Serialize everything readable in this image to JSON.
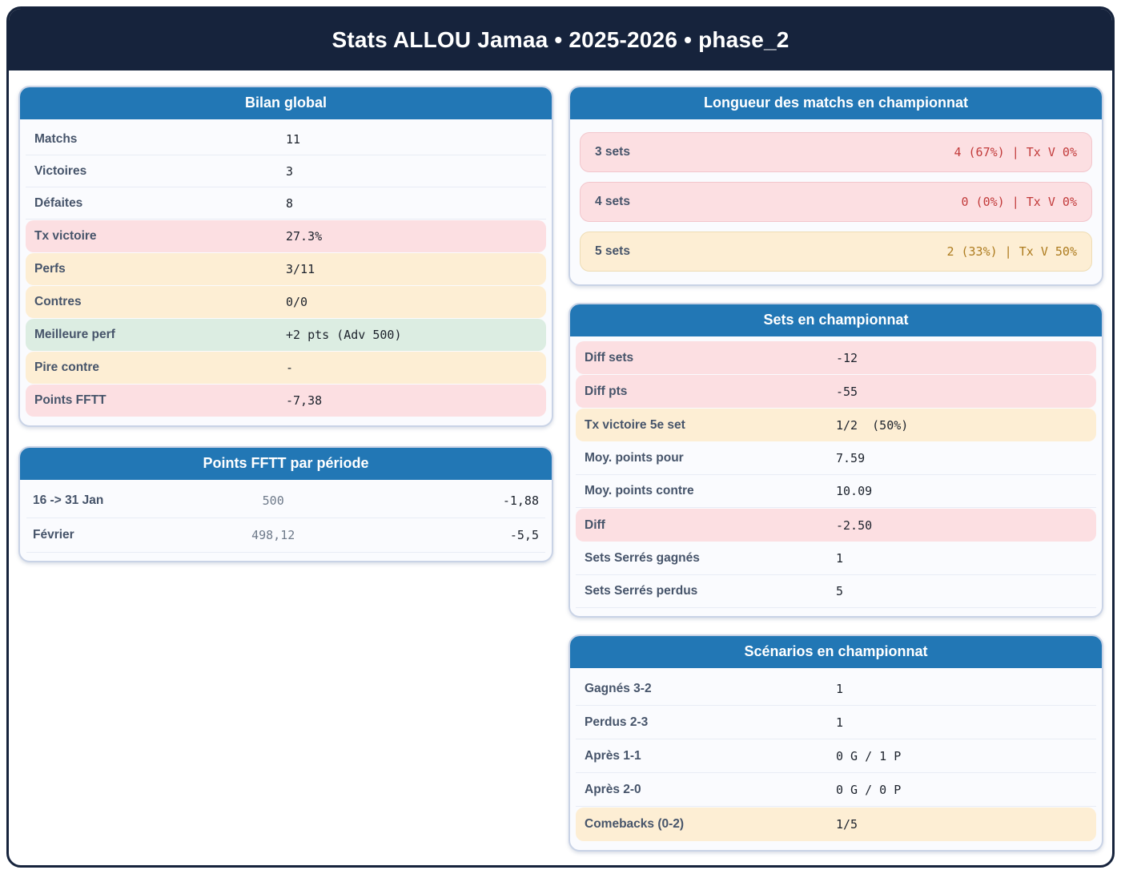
{
  "title": "Stats ALLOU Jamaa • 2025-2026 • phase_2",
  "colors": {
    "banner_navy": "#16233c",
    "card_header_blue": "#2277b5",
    "pink_bg": "#fcdfe2",
    "cream_bg": "#fdeed4",
    "green_bg": "#dcede2",
    "red_text": "#c23b3b",
    "amber_text": "#ad7b1e",
    "label_slate": "#46546a"
  },
  "cards": {
    "bilan": {
      "title": "Bilan global",
      "rows": [
        {
          "label": "Matchs",
          "value": "11",
          "variant": "plain"
        },
        {
          "label": "Victoires",
          "value": "3",
          "variant": "plain"
        },
        {
          "label": "Défaites",
          "value": "8",
          "variant": "plain"
        },
        {
          "label": "Tx victoire",
          "value": "27.3%",
          "variant": "pink"
        },
        {
          "label": "Perfs",
          "value": "3/11",
          "variant": "cream"
        },
        {
          "label": "Contres",
          "value": "0/0",
          "variant": "cream"
        },
        {
          "label": "Meilleure perf",
          "value": "+2 pts (Adv 500)",
          "variant": "green"
        },
        {
          "label": "Pire contre",
          "value": "-",
          "variant": "cream"
        },
        {
          "label": "Points FFTT",
          "value": "-7,38",
          "variant": "pink"
        }
      ]
    },
    "periodes": {
      "title": "Points FFTT par période",
      "rows": [
        {
          "label": "16 -> 31 Jan",
          "mid": "500",
          "right": "-1,88"
        },
        {
          "label": "Février",
          "mid": "498,12",
          "right": "-5,5"
        }
      ]
    },
    "longueur": {
      "title": "Longueur des matchs en championnat",
      "rows": [
        {
          "label": "3 sets",
          "value": "4 (67%) | Tx V 0%",
          "variant": "pink",
          "value_color": "red"
        },
        {
          "label": "4 sets",
          "value": "0 (0%) | Tx V 0%",
          "variant": "pink",
          "value_color": "red"
        },
        {
          "label": "5 sets",
          "value": "2 (33%) | Tx V 50%",
          "variant": "cream",
          "value_color": "amber"
        }
      ]
    },
    "sets": {
      "title": "Sets en championnat",
      "rows": [
        {
          "label": "Diff sets",
          "value": "-12",
          "variant": "pink"
        },
        {
          "label": "Diff pts",
          "value": "-55",
          "variant": "pink"
        },
        {
          "label": "Tx victoire 5e set",
          "value": "1/2  (50%)",
          "variant": "cream"
        },
        {
          "label": "Moy. points pour",
          "value": "7.59",
          "variant": "plain"
        },
        {
          "label": "Moy. points contre",
          "value": "10.09",
          "variant": "plain"
        },
        {
          "label": "Diff",
          "value": "-2.50",
          "variant": "pink"
        },
        {
          "label": "Sets Serrés gagnés",
          "value": "1",
          "variant": "plain"
        },
        {
          "label": "Sets Serrés perdus",
          "value": "5",
          "variant": "plain"
        }
      ]
    },
    "scenarios": {
      "title": "Scénarios en championnat",
      "rows": [
        {
          "label": "Gagnés 3-2",
          "value": "1",
          "variant": "plain"
        },
        {
          "label": "Perdus 2-3",
          "value": "1",
          "variant": "plain"
        },
        {
          "label": "Après 1-1",
          "value": "0 G / 1 P",
          "variant": "plain"
        },
        {
          "label": "Après 2-0",
          "value": "0 G / 0 P",
          "variant": "plain"
        },
        {
          "label": "Comebacks (0-2)",
          "value": "1/5",
          "variant": "cream"
        }
      ]
    }
  }
}
